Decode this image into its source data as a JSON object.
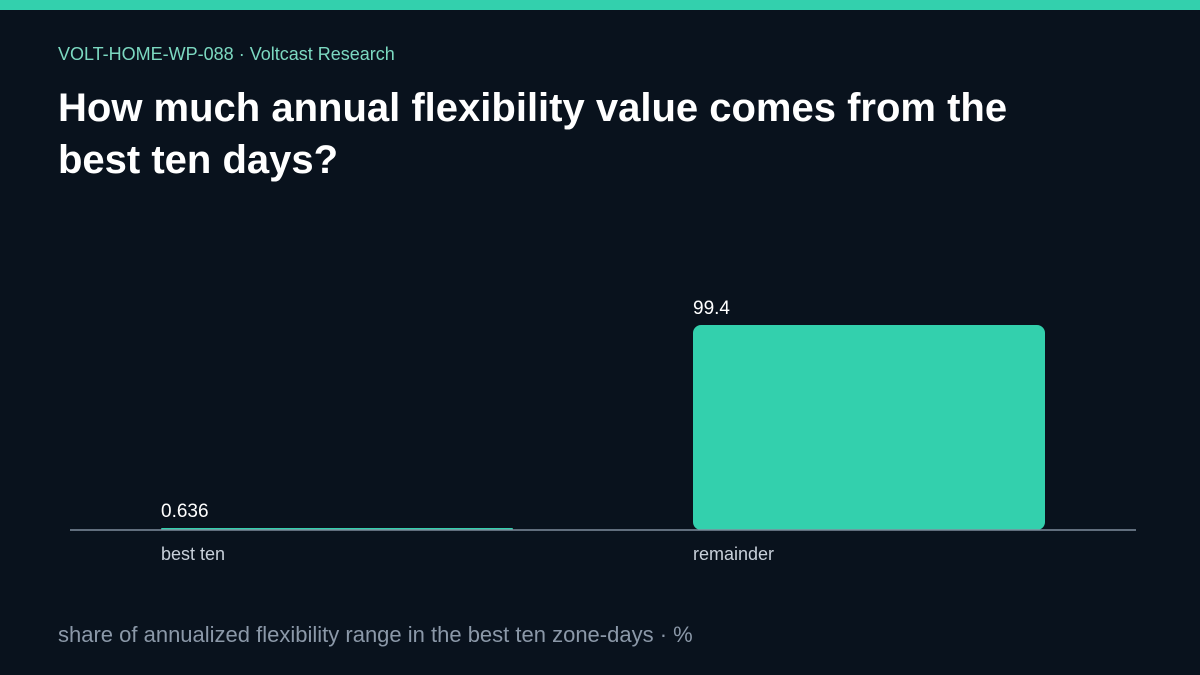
{
  "header": {
    "eyebrow": "VOLT-HOME-WP-088 · Voltcast Research",
    "title": "How much annual flexibility value comes from the best ten days?"
  },
  "footer": {
    "caption": "share of annualized flexibility range in the best ten zone-days · %"
  },
  "colors": {
    "background": "#09121d",
    "accent": "#33d0ad",
    "axis": "#7f8d9d",
    "muted_text": "#8b98a8",
    "header_text": "#7cd9c1"
  },
  "chart_data": {
    "type": "bar",
    "categories": [
      "best ten",
      "remainder"
    ],
    "values": [
      0.636,
      99.4
    ],
    "value_labels": [
      "0.636",
      "99.4"
    ],
    "xlabel": "",
    "ylabel": "",
    "ylim": [
      0,
      99.4
    ],
    "grid": false
  }
}
